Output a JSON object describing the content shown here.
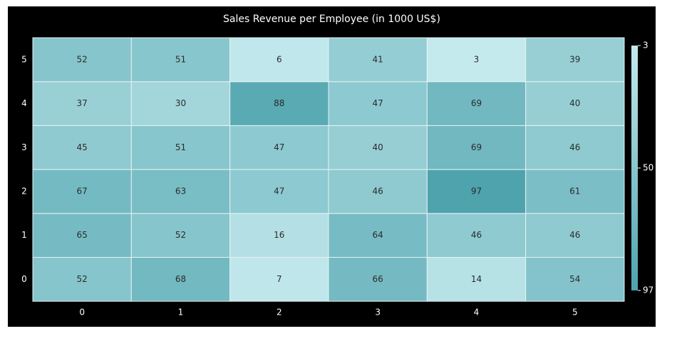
{
  "chart_data": {
    "type": "heatmap",
    "title": "Sales Revenue per Employee (in 1000 US$)",
    "x_categories": [
      "0",
      "1",
      "2",
      "3",
      "4",
      "5"
    ],
    "y_categories": [
      "0",
      "1",
      "2",
      "3",
      "4",
      "5"
    ],
    "values": [
      [
        52,
        68,
        7,
        66,
        14,
        54
      ],
      [
        65,
        52,
        16,
        64,
        46,
        46
      ],
      [
        67,
        63,
        47,
        46,
        97,
        61
      ],
      [
        45,
        51,
        47,
        40,
        69,
        46
      ],
      [
        37,
        30,
        88,
        47,
        69,
        40
      ],
      [
        52,
        51,
        6,
        41,
        3,
        39
      ]
    ],
    "color_scale": {
      "min": 3,
      "max": 97,
      "low_color": "#c4eaee",
      "high_color": "#4ea3ad",
      "legend_ticks": [
        "3",
        "50",
        "97"
      ],
      "legend_position": "right"
    },
    "colors": {
      "background": "#000000",
      "text": "#ffffff",
      "cell_text": "#2b2b2b",
      "cell_border": "#e6f2f3"
    }
  }
}
